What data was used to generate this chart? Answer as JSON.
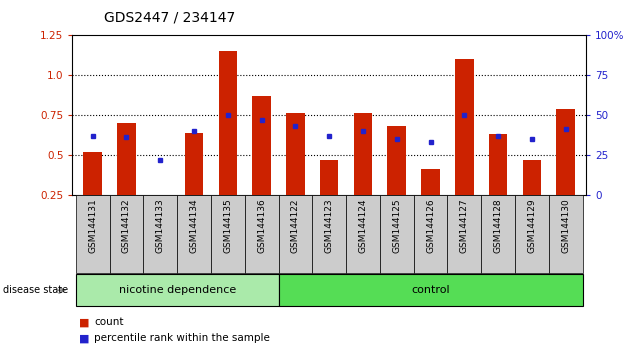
{
  "title": "GDS2447 / 234147",
  "categories": [
    "GSM144131",
    "GSM144132",
    "GSM144133",
    "GSM144134",
    "GSM144135",
    "GSM144136",
    "GSM144122",
    "GSM144123",
    "GSM144124",
    "GSM144125",
    "GSM144126",
    "GSM144127",
    "GSM144128",
    "GSM144129",
    "GSM144130"
  ],
  "red_values": [
    0.52,
    0.7,
    0.21,
    0.64,
    1.15,
    0.87,
    0.76,
    0.47,
    0.76,
    0.68,
    0.41,
    1.1,
    0.63,
    0.47,
    0.79
  ],
  "blue_values": [
    0.62,
    0.61,
    0.47,
    0.65,
    0.75,
    0.72,
    0.68,
    0.62,
    0.65,
    0.6,
    0.58,
    0.75,
    0.62,
    0.6,
    0.66
  ],
  "group1_label": "nicotine dependence",
  "group1_count": 6,
  "group2_label": "control",
  "group2_count": 9,
  "disease_state_label": "disease state",
  "ylim_left": [
    0.25,
    1.25
  ],
  "ylim_right": [
    0,
    100
  ],
  "yticks_left": [
    0.25,
    0.5,
    0.75,
    1.0,
    1.25
  ],
  "yticks_right": [
    0,
    25,
    50,
    75,
    100
  ],
  "ytick_labels_right": [
    "0",
    "25",
    "50",
    "75",
    "100%"
  ],
  "dotted_lines": [
    0.5,
    0.75,
    1.0
  ],
  "bar_color": "#cc2200",
  "dot_color": "#2222cc",
  "group1_bg": "#aaeaaa",
  "group2_bg": "#55dd55",
  "tick_bg": "#cccccc",
  "legend_count_label": "count",
  "legend_pct_label": "percentile rank within the sample",
  "bar_bottom": 0.25,
  "bar_width": 0.55
}
